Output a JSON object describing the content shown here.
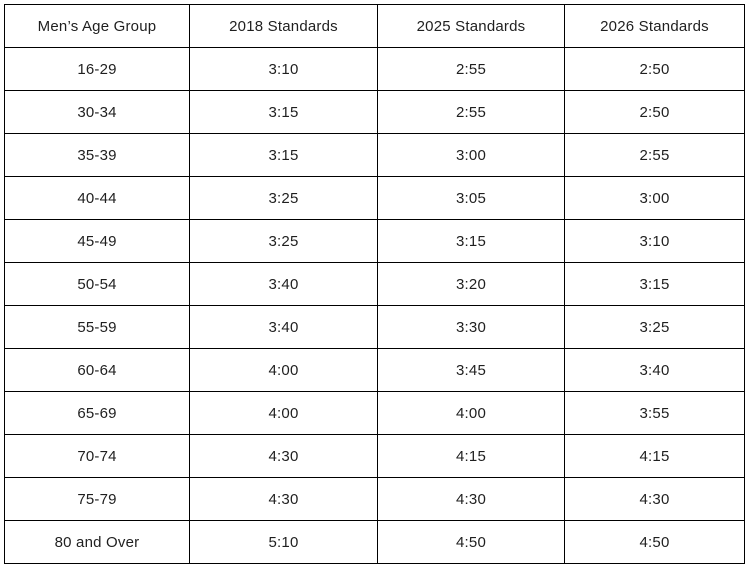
{
  "table": {
    "headers": [
      "Men’s Age Group",
      "2018 Standards",
      "2025 Standards",
      "2026 Standards"
    ],
    "rows": [
      [
        "16-29",
        "3:10",
        "2:55",
        "2:50"
      ],
      [
        "30-34",
        "3:15",
        "2:55",
        "2:50"
      ],
      [
        "35-39",
        "3:15",
        "3:00",
        "2:55"
      ],
      [
        "40-44",
        "3:25",
        "3:05",
        "3:00"
      ],
      [
        "45-49",
        "3:25",
        "3:15",
        "3:10"
      ],
      [
        "50-54",
        "3:40",
        "3:20",
        "3:15"
      ],
      [
        "55-59",
        "3:40",
        "3:30",
        "3:25"
      ],
      [
        "60-64",
        "4:00",
        "3:45",
        "3:40"
      ],
      [
        "65-69",
        "4:00",
        "4:00",
        "3:55"
      ],
      [
        "70-74",
        "4:30",
        "4:15",
        "4:15"
      ],
      [
        "75-79",
        "4:30",
        "4:30",
        "4:30"
      ],
      [
        "80 and Over",
        "5:10",
        "4:50",
        "4:50"
      ]
    ],
    "colors": {
      "border": "#000000",
      "text": "#1f1f1f",
      "background": "#ffffff"
    }
  }
}
